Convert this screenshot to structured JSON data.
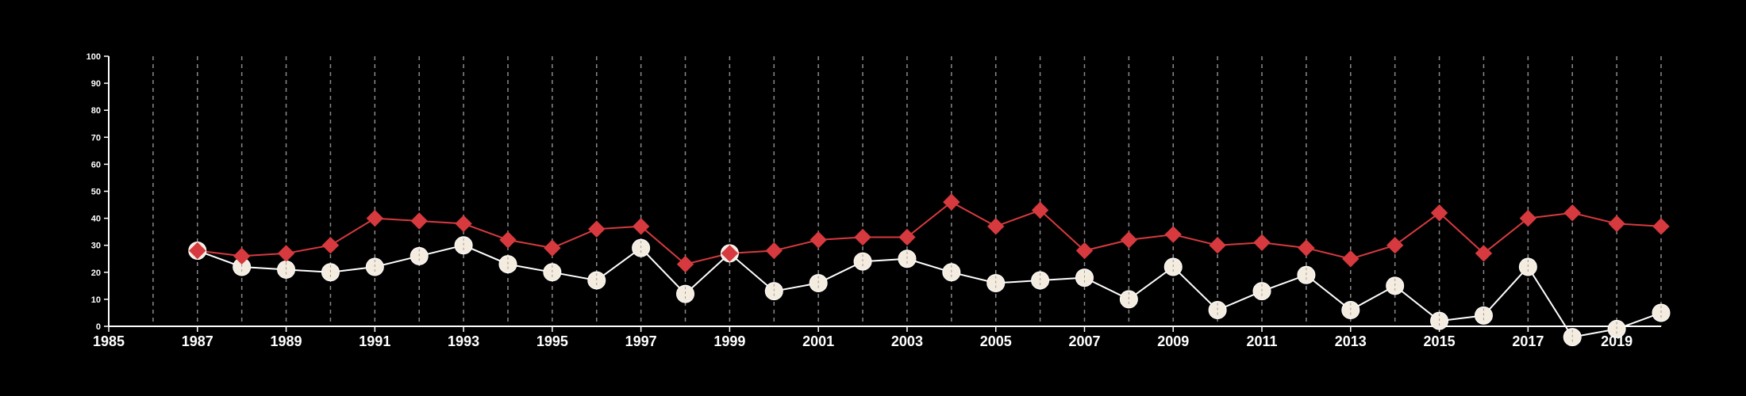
{
  "chart_data": {
    "type": "line",
    "xlim": [
      1985,
      2020
    ],
    "ylim": [
      0,
      100
    ],
    "x_ticks": [
      "1985",
      "1987",
      "1989",
      "1991",
      "1993",
      "1995",
      "1997",
      "1999",
      "2001",
      "2003",
      "2005",
      "2007",
      "2009",
      "2011",
      "2013",
      "2015",
      "2017",
      "2019"
    ],
    "y_ticks": [
      "0",
      "10",
      "20",
      "30",
      "40",
      "50",
      "60",
      "70",
      "80",
      "90",
      "100"
    ],
    "grid": "vertical dashed lines at every year",
    "x": [
      1987,
      1988,
      1989,
      1990,
      1991,
      1992,
      1993,
      1994,
      1995,
      1996,
      1997,
      1998,
      1999,
      2000,
      2001,
      2002,
      2003,
      2004,
      2005,
      2006,
      2007,
      2008,
      2009,
      2010,
      2011,
      2012,
      2013,
      2014,
      2015,
      2016,
      2017,
      2018,
      2019,
      2020
    ],
    "series": [
      {
        "marker": "diamond",
        "color": "#d63a3f",
        "values": [
          28,
          26,
          27,
          30,
          40,
          39,
          38,
          32,
          29,
          36,
          37,
          23,
          27,
          28,
          32,
          33,
          33,
          46,
          37,
          43,
          28,
          32,
          34,
          30,
          31,
          29,
          25,
          30,
          42,
          27,
          40,
          42,
          38,
          37
        ]
      },
      {
        "marker": "circle",
        "color": "#f5ece0",
        "values": [
          28,
          22,
          21,
          20,
          22,
          26,
          30,
          23,
          20,
          17,
          29,
          12,
          27,
          13,
          16,
          24,
          25,
          20,
          16,
          17,
          18,
          10,
          22,
          6,
          13,
          19,
          6,
          15,
          2,
          4,
          22,
          -4,
          -1,
          5
        ]
      }
    ]
  }
}
